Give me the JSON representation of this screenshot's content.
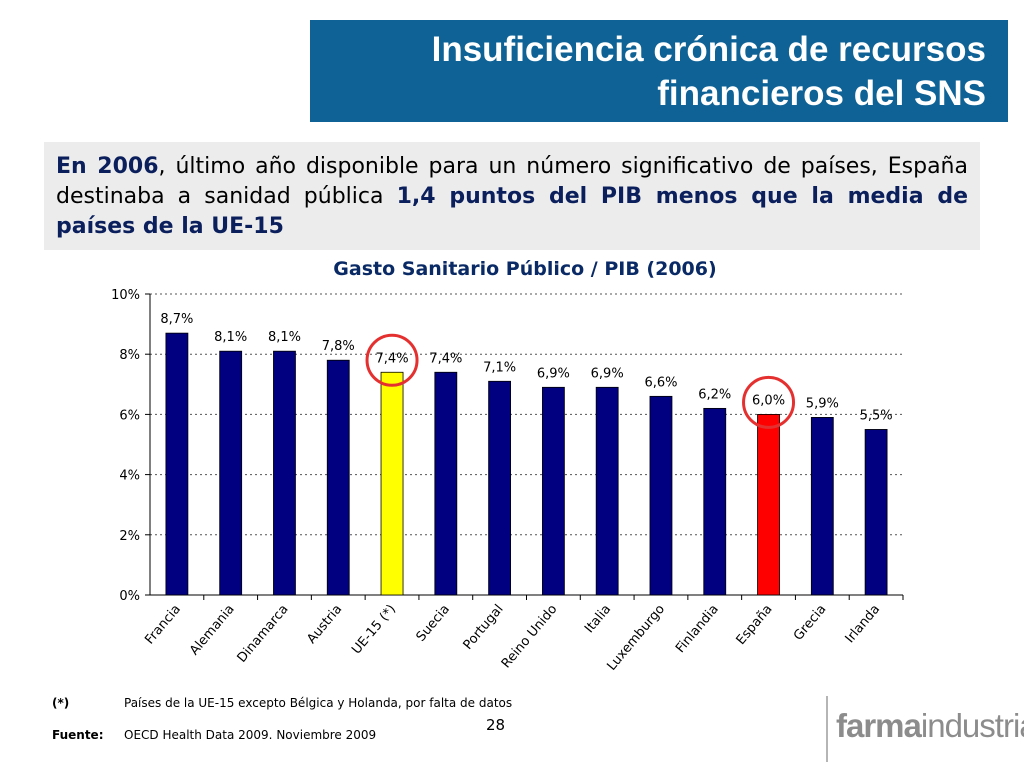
{
  "header": {
    "title_line1": "Insuficiencia crónica de recursos",
    "title_line2": "financieros del SNS"
  },
  "intro": {
    "part1": "En 2006",
    "part2": ", último año disponible para un número significativo de países, España destinaba a sanidad pública ",
    "part3": "1,4 puntos del PIB menos que la media de países de la UE-15"
  },
  "chart_data": {
    "type": "bar",
    "title": "Gasto Sanitario Público / PIB (2006)",
    "categories": [
      "Francia",
      "Alemania",
      "Dinamarca",
      "Austria",
      "UE-15 (*)",
      "Suecia",
      "Portugal",
      "Reino Unido",
      "Italia",
      "Luxemburgo",
      "Finlandia",
      "España",
      "Grecia",
      "Irlanda"
    ],
    "values": [
      8.7,
      8.1,
      8.1,
      7.8,
      7.4,
      7.4,
      7.1,
      6.9,
      6.9,
      6.6,
      6.2,
      6.0,
      5.9,
      5.5
    ],
    "value_labels": [
      "8,7%",
      "8,1%",
      "8,1%",
      "7,8%",
      "7,4%",
      "7,4%",
      "7,1%",
      "6,9%",
      "6,9%",
      "6,6%",
      "6,2%",
      "6,0%",
      "5,9%",
      "5,5%"
    ],
    "ylim": [
      0,
      10
    ],
    "yticks": [
      0,
      2,
      4,
      6,
      8,
      10
    ],
    "ytick_labels": [
      "0%",
      "2%",
      "4%",
      "6%",
      "8%",
      "10%"
    ],
    "grid": true,
    "bar_color": "#000080",
    "highlight": [
      {
        "category": "UE-15 (*)",
        "color": "#ffff00",
        "circled": true
      },
      {
        "category": "España",
        "color": "#ff0000",
        "circled": true
      }
    ],
    "circle_color": "#e53030"
  },
  "footnotes": {
    "note_key": "(*)",
    "note_text": "Países de la UE-15 excepto Bélgica y Holanda, por falta de datos",
    "source_key": "Fuente:",
    "source_text": "OECD Health Data 2009. Noviembre 2009"
  },
  "page_number": "28",
  "logo": {
    "part1": "farma",
    "part2": "industria"
  }
}
